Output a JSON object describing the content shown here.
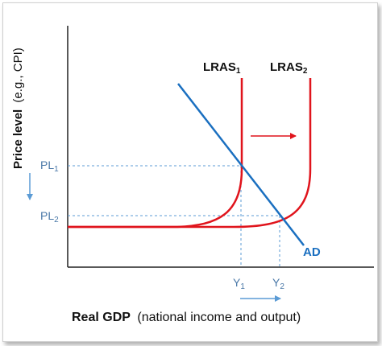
{
  "diagram": {
    "y_axis_label": {
      "bold": "Price level",
      "normal": "(e.g., CPI)"
    },
    "x_axis_label": {
      "bold": "Real GDP",
      "normal": "(national income and output)"
    },
    "curves": {
      "lras1": {
        "base": "LRAS",
        "sub": "1"
      },
      "lras2": {
        "base": "LRAS",
        "sub": "2"
      },
      "ad": "AD"
    },
    "price_levels": {
      "pl1": {
        "base": "PL",
        "sub": "1"
      },
      "pl2": {
        "base": "PL",
        "sub": "2"
      }
    },
    "output_levels": {
      "y1": {
        "base": "Y",
        "sub": "1"
      },
      "y2": {
        "base": "Y",
        "sub": "2"
      }
    },
    "colors": {
      "lras": "#e0141c",
      "ad": "#1a6fc0",
      "guide": "#5b9bd5",
      "axis": "#222222",
      "label_blue": "#4a78a8"
    }
  }
}
